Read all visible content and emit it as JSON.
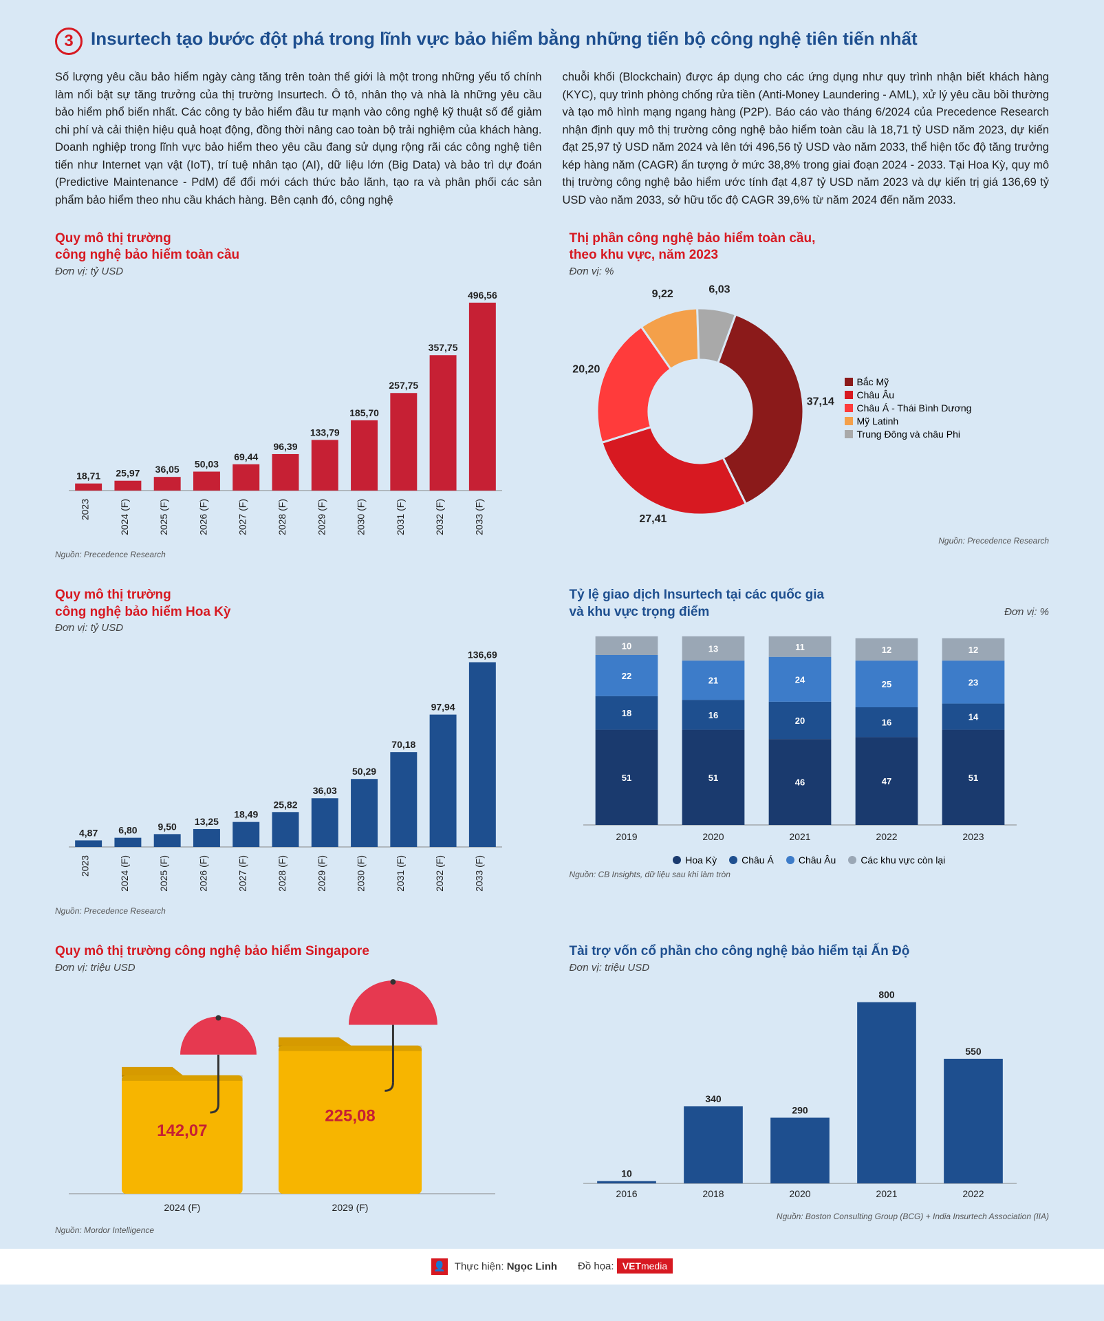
{
  "header": {
    "number": "3",
    "title": "Insurtech tạo bước đột phá trong lĩnh vực bảo hiểm bằng những tiến bộ công nghệ tiên tiến nhất"
  },
  "body": {
    "col1": "Số lượng yêu cầu bảo hiểm ngày càng tăng trên toàn thế giới là một trong những yếu tố chính làm nổi bật sự tăng trưởng của thị trường Insurtech. Ô tô, nhân thọ và nhà là những yêu cầu bảo hiểm phổ biến nhất. Các công ty bảo hiểm đầu tư mạnh vào công nghệ kỹ thuật số để giảm chi phí và cải thiện hiệu quả hoạt động, đồng thời nâng cao toàn bộ trải nghiệm của khách hàng. Doanh nghiệp trong lĩnh vực bảo hiểm theo yêu cầu đang sử dụng rộng rãi các công nghệ tiên tiến như Internet vạn vật (IoT), trí tuệ nhân tạo (AI), dữ liệu lớn (Big Data) và bảo trì dự đoán (Predictive Maintenance - PdM) để đổi mới cách thức bảo lãnh, tạo ra và phân phối các sản phẩm bảo hiểm theo nhu cầu khách hàng. Bên cạnh đó, công nghệ",
    "col2": "chuỗi khối (Blockchain) được áp dụng cho các ứng dụng như quy trình nhận biết khách hàng (KYC), quy trình phòng chống rửa tiền (Anti-Money Laundering - AML), xử lý yêu cầu bồi thường và tạo mô hình mạng ngang hàng (P2P). Báo cáo vào tháng 6/2024 của Precedence Research nhận định quy mô thị trường công nghệ bảo hiểm toàn cầu là 18,71 tỷ USD năm 2023, dự kiến đạt 25,97 tỷ USD năm 2024 và lên tới 496,56 tỷ USD vào năm 2033, thể hiện tốc độ tăng trưởng kép hàng năm (CAGR) ấn tượng ở mức 38,8% trong giai đoạn 2024 - 2033. Tại Hoa Kỳ, quy mô thị trường công nghệ bảo hiểm ước tính đạt 4,87 tỷ USD năm 2023 và dự kiến trị giá 136,69 tỷ USD vào năm 2033, sở hữu tốc độ CAGR 39,6% từ năm 2024 đến năm 2033."
  },
  "chart1": {
    "title": "Quy mô thị trường\ncông nghệ bảo hiểm toàn cầu",
    "unit": "Đơn vị: tỷ USD",
    "source": "Nguồn: Precedence Research",
    "categories": [
      "2023",
      "2024 (F)",
      "2025 (F)",
      "2026 (F)",
      "2027 (F)",
      "2028 (F)",
      "2029 (F)",
      "2030 (F)",
      "2031 (F)",
      "2032 (F)",
      "2033 (F)"
    ],
    "values": [
      18.71,
      25.97,
      36.05,
      50.03,
      69.44,
      96.39,
      133.79,
      185.7,
      257.75,
      357.75,
      496.56
    ],
    "labels": [
      "18,71",
      "25,97",
      "36,05",
      "50,03",
      "69,44",
      "96,39",
      "133,79",
      "185,70",
      "257,75",
      "357,75",
      "496,56"
    ],
    "color": "#c62034",
    "ymax": 500
  },
  "chart2": {
    "title": "Thị phần công nghệ bảo hiểm toàn cầu,\ntheo khu vực, năm 2023",
    "unit": "Đơn vị: %",
    "source": "Nguồn: Precedence Research",
    "slices": [
      {
        "label": "Bắc Mỹ",
        "value": 37.14,
        "color": "#8b1a1a",
        "text": "37,14"
      },
      {
        "label": "Châu Âu",
        "value": 27.41,
        "color": "#d71921",
        "text": "27,41"
      },
      {
        "label": "Châu Á - Thái Bình Dương",
        "value": 20.2,
        "color": "#ff3b3b",
        "text": "20,20"
      },
      {
        "label": "Mỹ Latinh",
        "value": 9.22,
        "color": "#f4a04a",
        "text": "9,22"
      },
      {
        "label": "Trung Đông và châu Phi",
        "value": 6.03,
        "color": "#a9a9a9",
        "text": "6,03"
      }
    ]
  },
  "chart3": {
    "title": "Quy mô thị trường\ncông nghệ bảo hiểm Hoa Kỳ",
    "unit": "Đơn vị: tỷ USD",
    "source": "Nguồn: Precedence Research",
    "categories": [
      "2023",
      "2024 (F)",
      "2025 (F)",
      "2026 (F)",
      "2027 (F)",
      "2028 (F)",
      "2029 (F)",
      "2030 (F)",
      "2031 (F)",
      "2032 (F)",
      "2033 (F)"
    ],
    "values": [
      4.87,
      6.8,
      9.5,
      13.25,
      18.49,
      25.82,
      36.03,
      50.29,
      70.18,
      97.94,
      136.69
    ],
    "labels": [
      "4,87",
      "6,80",
      "9,50",
      "13,25",
      "18,49",
      "25,82",
      "36,03",
      "50,29",
      "70,18",
      "97,94",
      "136,69"
    ],
    "color": "#1e4f8f",
    "ymax": 140
  },
  "chart4": {
    "title": "Tỷ lệ giao dịch Insurtech tại các quốc gia\nvà khu vực trọng điểm",
    "unit": "Đơn vị: %",
    "source": "Nguồn: CB Insights, dữ liệu sau khi làm tròn",
    "categories": [
      "2019",
      "2020",
      "2021",
      "2022",
      "2023"
    ],
    "series": [
      {
        "name": "Hoa Kỳ",
        "color": "#1a3a6e",
        "values": [
          51,
          51,
          46,
          47,
          51
        ]
      },
      {
        "name": "Châu Á",
        "color": "#1e4f8f",
        "values": [
          18,
          16,
          20,
          16,
          14
        ]
      },
      {
        "name": "Châu Âu",
        "color": "#3d7cc9",
        "values": [
          22,
          21,
          24,
          25,
          23
        ]
      },
      {
        "name": "Các khu vực còn lại",
        "color": "#9aa7b5",
        "values": [
          10,
          13,
          11,
          12,
          12
        ]
      }
    ],
    "ymax": 105
  },
  "chart5": {
    "title": "Quy mô thị trường công nghệ bảo hiểm Singapore",
    "unit": "Đơn vị: triệu USD",
    "source": "Nguồn: Mordor Intelligence",
    "items": [
      {
        "year": "2024 (F)",
        "value": 142.07,
        "label": "142,07"
      },
      {
        "year": "2029 (F)",
        "value": 225.08,
        "label": "225,08"
      }
    ],
    "folder_color": "#f7b500",
    "umbrella_color": "#e63950",
    "ymax": 230
  },
  "chart6": {
    "title": "Tài trợ vốn cổ phần cho công nghệ bảo hiểm tại Ấn Độ",
    "unit": "Đơn vị: triệu USD",
    "source": "Nguồn: Boston Consulting Group (BCG) + India Insurtech Association (IIA)",
    "categories": [
      "2016",
      "2018",
      "2020",
      "2021",
      "2022"
    ],
    "values": [
      10,
      340,
      290,
      800,
      550
    ],
    "labels": [
      "10",
      "340",
      "290",
      "800",
      "550"
    ],
    "color": "#1e4f8f",
    "ymax": 820
  },
  "footer": {
    "author_label": "Thực hiện:",
    "author": "Ngọc Linh",
    "design_label": "Đồ họa:",
    "brand1": "VET",
    "brand2": "media"
  }
}
